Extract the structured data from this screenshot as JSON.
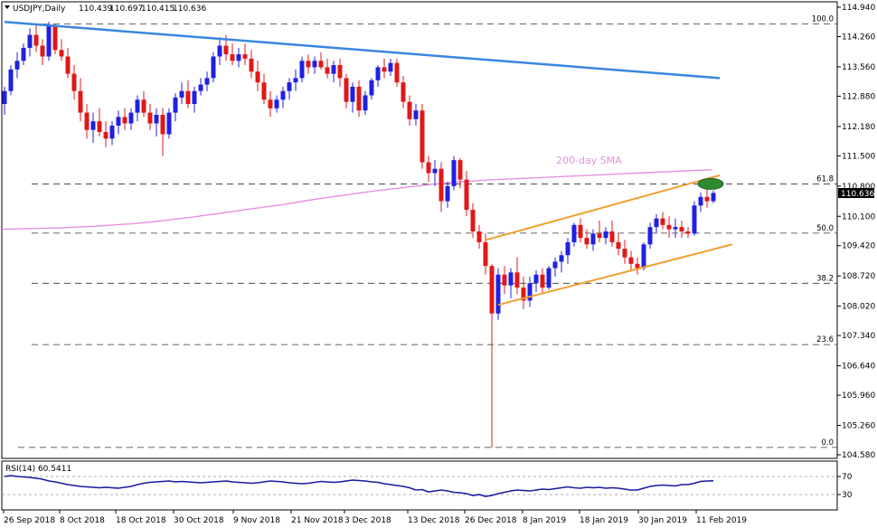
{
  "chart_data": [
    {
      "type": "candlestick",
      "symbol": "USDJPY",
      "timeframe": "Daily",
      "ohlc": {
        "open": "110.439",
        "high": "110.697",
        "low": "110.415",
        "close": "110.636"
      },
      "y_ticks": [
        "114.940",
        "114.260",
        "113.560",
        "112.880",
        "112.180",
        "111.500",
        "110.800",
        "110.100",
        "109.420",
        "108.720",
        "108.020",
        "107.340",
        "106.640",
        "105.960",
        "105.260",
        "104.580"
      ],
      "ylim": [
        104.58,
        114.94
      ],
      "x_ticks": [
        "26 Sep 2018",
        "8 Oct 2018",
        "18 Oct 2018",
        "30 Oct 2018",
        "9 Nov 2018",
        "21 Nov 2018",
        "3 Dec 2018",
        "13 Dec 2018",
        "26 Dec 2018",
        "8 Jan 2019",
        "18 Jan 2019",
        "30 Jan 2019",
        "11 Feb 2019"
      ],
      "current_price_label": "110.636",
      "fibonacci_levels": [
        {
          "label": "100.0",
          "value": 114.55
        },
        {
          "label": "61.8",
          "value": 110.85
        },
        {
          "label": "50.0",
          "value": 109.71
        },
        {
          "label": "38.2",
          "value": 108.55
        },
        {
          "label": "23.6",
          "value": 107.13
        },
        {
          "label": "0.0",
          "value": 104.75
        }
      ],
      "sma_label": "200-day SMA",
      "sma_values": [
        109.8,
        109.81,
        109.82,
        109.83,
        109.85,
        109.87,
        109.9,
        109.93,
        109.97,
        110.02,
        110.07,
        110.13,
        110.19,
        110.25,
        110.31,
        110.37,
        110.44,
        110.51,
        110.57,
        110.63,
        110.69,
        110.74,
        110.79,
        110.84,
        110.88,
        110.91,
        110.94,
        110.96,
        110.98,
        111.0,
        111.02,
        111.04,
        111.06,
        111.08,
        111.1,
        111.12,
        111.14,
        111.16,
        111.18
      ],
      "candles": [
        [
          112.7,
          113.1,
          112.45,
          113.0
        ],
        [
          113.0,
          113.6,
          112.9,
          113.5
        ],
        [
          113.5,
          113.9,
          113.3,
          113.7
        ],
        [
          113.7,
          114.1,
          113.6,
          114.0
        ],
        [
          114.0,
          114.45,
          113.8,
          114.3
        ],
        [
          114.3,
          114.55,
          113.9,
          114.05
        ],
        [
          114.05,
          114.2,
          113.6,
          113.8
        ],
        [
          113.8,
          114.6,
          113.7,
          114.5
        ],
        [
          114.5,
          114.55,
          113.85,
          113.95
        ],
        [
          113.95,
          114.2,
          113.7,
          113.8
        ],
        [
          113.8,
          114.0,
          113.3,
          113.4
        ],
        [
          113.4,
          113.6,
          112.8,
          113.0
        ],
        [
          113.0,
          113.3,
          112.3,
          112.5
        ],
        [
          112.5,
          112.7,
          111.9,
          112.1
        ],
        [
          112.1,
          112.5,
          111.8,
          112.3
        ],
        [
          112.3,
          112.6,
          111.95,
          112.05
        ],
        [
          112.05,
          112.3,
          111.7,
          111.9
        ],
        [
          111.9,
          112.3,
          111.75,
          112.2
        ],
        [
          112.2,
          112.55,
          112.0,
          112.4
        ],
        [
          112.4,
          112.6,
          112.1,
          112.25
        ],
        [
          112.25,
          112.6,
          112.1,
          112.5
        ],
        [
          112.5,
          112.9,
          112.3,
          112.8
        ],
        [
          112.8,
          113.0,
          112.4,
          112.5
        ],
        [
          112.5,
          112.7,
          112.1,
          112.25
        ],
        [
          112.25,
          112.6,
          111.95,
          112.45
        ],
        [
          112.45,
          112.6,
          111.5,
          112.0
        ],
        [
          112.0,
          112.6,
          111.9,
          112.5
        ],
        [
          112.5,
          112.95,
          112.3,
          112.85
        ],
        [
          112.85,
          113.2,
          112.7,
          113.0
        ],
        [
          113.0,
          113.25,
          112.6,
          112.7
        ],
        [
          112.7,
          113.1,
          112.5,
          113.0
        ],
        [
          113.0,
          113.3,
          112.9,
          113.15
        ],
        [
          113.15,
          113.45,
          113.0,
          113.3
        ],
        [
          113.3,
          113.9,
          113.2,
          113.8
        ],
        [
          113.8,
          114.25,
          113.6,
          114.05
        ],
        [
          114.05,
          114.3,
          113.7,
          113.85
        ],
        [
          113.85,
          114.1,
          113.6,
          113.7
        ],
        [
          113.7,
          114.0,
          113.55,
          113.85
        ],
        [
          113.85,
          114.1,
          113.6,
          113.75
        ],
        [
          113.75,
          113.95,
          113.3,
          113.45
        ],
        [
          113.45,
          113.7,
          113.0,
          113.2
        ],
        [
          113.2,
          113.4,
          112.7,
          112.8
        ],
        [
          112.8,
          113.0,
          112.4,
          112.6
        ],
        [
          112.6,
          112.9,
          112.5,
          112.8
        ],
        [
          112.8,
          113.1,
          112.6,
          113.0
        ],
        [
          113.0,
          113.3,
          112.8,
          113.2
        ],
        [
          113.2,
          113.5,
          113.0,
          113.3
        ],
        [
          113.3,
          113.8,
          113.2,
          113.7
        ],
        [
          113.7,
          113.85,
          113.4,
          113.55
        ],
        [
          113.55,
          113.8,
          113.4,
          113.7
        ],
        [
          113.7,
          113.9,
          113.5,
          113.55
        ],
        [
          113.55,
          113.75,
          113.3,
          113.4
        ],
        [
          113.4,
          113.7,
          113.2,
          113.6
        ],
        [
          113.6,
          113.75,
          113.1,
          113.3
        ],
        [
          113.3,
          113.4,
          112.6,
          112.75
        ],
        [
          112.75,
          113.2,
          112.5,
          113.1
        ],
        [
          113.1,
          113.25,
          112.4,
          112.55
        ],
        [
          112.55,
          113.0,
          112.45,
          112.9
        ],
        [
          112.9,
          113.3,
          112.8,
          113.25
        ],
        [
          113.25,
          113.6,
          113.1,
          113.55
        ],
        [
          113.55,
          113.75,
          113.3,
          113.45
        ],
        [
          113.45,
          113.75,
          113.35,
          113.65
        ],
        [
          113.65,
          113.75,
          113.1,
          113.2
        ],
        [
          113.2,
          113.35,
          112.6,
          112.75
        ],
        [
          112.75,
          112.9,
          112.2,
          112.35
        ],
        [
          112.35,
          112.7,
          112.2,
          112.55
        ],
        [
          112.55,
          112.7,
          111.2,
          111.35
        ],
        [
          111.35,
          111.5,
          110.9,
          111.1
        ],
        [
          111.1,
          111.4,
          110.8,
          111.2
        ],
        [
          111.2,
          111.35,
          110.2,
          110.45
        ],
        [
          110.45,
          110.9,
          110.3,
          110.8
        ],
        [
          110.8,
          111.5,
          110.7,
          111.4
        ],
        [
          111.4,
          111.45,
          110.75,
          110.95
        ],
        [
          110.95,
          111.15,
          110.1,
          110.25
        ],
        [
          110.25,
          110.4,
          109.6,
          109.75
        ],
        [
          109.75,
          109.9,
          109.35,
          109.5
        ],
        [
          109.5,
          109.7,
          108.75,
          108.95
        ],
        [
          108.95,
          109.0,
          104.75,
          107.85
        ],
        [
          107.85,
          108.9,
          107.7,
          108.75
        ],
        [
          108.75,
          108.95,
          108.3,
          108.5
        ],
        [
          108.5,
          108.9,
          108.2,
          108.8
        ],
        [
          108.8,
          109.15,
          108.3,
          108.45
        ],
        [
          108.45,
          108.7,
          107.95,
          108.15
        ],
        [
          108.15,
          108.7,
          108.0,
          108.55
        ],
        [
          108.55,
          108.85,
          108.35,
          108.75
        ],
        [
          108.75,
          108.9,
          108.3,
          108.45
        ],
        [
          108.45,
          108.95,
          108.4,
          108.9
        ],
        [
          108.9,
          109.15,
          108.7,
          109.05
        ],
        [
          109.05,
          109.3,
          108.8,
          109.2
        ],
        [
          109.2,
          109.6,
          109.0,
          109.5
        ],
        [
          109.5,
          109.95,
          109.4,
          109.9
        ],
        [
          109.9,
          110.05,
          109.5,
          109.6
        ],
        [
          109.6,
          109.8,
          109.35,
          109.45
        ],
        [
          109.45,
          109.8,
          109.3,
          109.7
        ],
        [
          109.7,
          110.0,
          109.5,
          109.6
        ],
        [
          109.6,
          109.85,
          109.45,
          109.75
        ],
        [
          109.75,
          110.0,
          109.4,
          109.5
        ],
        [
          109.5,
          109.7,
          109.2,
          109.35
        ],
        [
          109.35,
          109.55,
          109.0,
          109.15
        ],
        [
          109.15,
          109.3,
          108.85,
          109.0
        ],
        [
          109.0,
          109.15,
          108.75,
          108.9
        ],
        [
          108.9,
          109.5,
          108.85,
          109.45
        ],
        [
          109.45,
          109.95,
          109.35,
          109.85
        ],
        [
          109.85,
          110.15,
          109.7,
          110.05
        ],
        [
          110.05,
          110.2,
          109.8,
          109.9
        ],
        [
          109.9,
          110.1,
          109.6,
          109.8
        ],
        [
          109.8,
          110.05,
          109.6,
          109.85
        ],
        [
          109.85,
          110.0,
          109.6,
          109.75
        ],
        [
          109.75,
          109.85,
          109.6,
          109.7
        ],
        [
          109.7,
          110.45,
          109.65,
          110.35
        ],
        [
          110.35,
          110.65,
          110.2,
          110.55
        ],
        [
          110.55,
          110.75,
          110.3,
          110.45
        ],
        [
          110.45,
          110.7,
          110.4,
          110.64
        ]
      ],
      "trendlines": {
        "resistance_line": {
          "from": [
            0,
            114.6
          ],
          "to": [
            113,
            113.3
          ]
        },
        "channel_upper": {
          "from": [
            76,
            109.55
          ],
          "to": [
            113,
            111.05
          ]
        },
        "channel_lower": {
          "from": [
            78,
            108.05
          ],
          "to": [
            115,
            109.45
          ]
        }
      },
      "highlight_price": 110.85
    },
    {
      "type": "line",
      "indicator_label": "RSI(14) 60.5411",
      "y_ticks": [
        "70",
        "30"
      ],
      "ylim": [
        0,
        100
      ],
      "reference_lines": [
        70,
        30
      ],
      "values": [
        70,
        72,
        70,
        69,
        68,
        66,
        64,
        60,
        58,
        55,
        52,
        50,
        48,
        47,
        46,
        45,
        46,
        45,
        44,
        46,
        48,
        52,
        55,
        57,
        58,
        59,
        60,
        58,
        59,
        58,
        57,
        56,
        57,
        58,
        59,
        60,
        58,
        57,
        56,
        55,
        56,
        58,
        60,
        59,
        58,
        56,
        55,
        54,
        55,
        57,
        59,
        58,
        57,
        58,
        60,
        62,
        61,
        60,
        58,
        57,
        54,
        52,
        50,
        48,
        45,
        40,
        41,
        36,
        38,
        40,
        38,
        35,
        34,
        32,
        28,
        30,
        26,
        28,
        32,
        35,
        38,
        40,
        39,
        38,
        40,
        42,
        41,
        43,
        45,
        47,
        45,
        44,
        46,
        45,
        46,
        44,
        45,
        44,
        42,
        40,
        40,
        44,
        48,
        50,
        51,
        50,
        49,
        52,
        52,
        55,
        59,
        60,
        60.5
      ]
    }
  ],
  "colors": {
    "bull": "#2020e0",
    "bear": "#e01818",
    "resistance_line": "#3a86e0",
    "channel": "#f0a030",
    "sma": "#e690e0",
    "rsi_line": "#1a1aa0",
    "highlight": "#2e8b2e"
  }
}
